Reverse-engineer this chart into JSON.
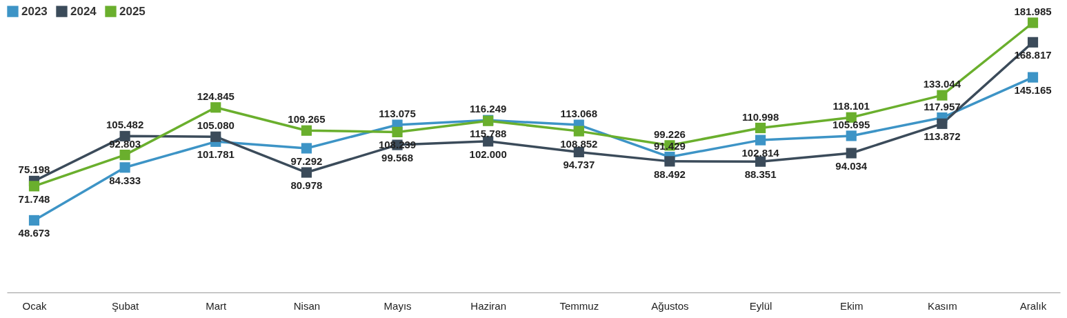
{
  "chart_data": {
    "type": "line",
    "categories": [
      "Ocak",
      "Şubat",
      "Mart",
      "Nisan",
      "Mayıs",
      "Haziran",
      "Temmuz",
      "Ağustos",
      "Eylül",
      "Ekim",
      "Kasım",
      "Aralık"
    ],
    "series": [
      {
        "name": "2023",
        "color": "#3d94c6",
        "values": [
          48673,
          84333,
          101781,
          97292,
          113075,
          116249,
          113068,
          91429,
          102814,
          105695,
          117957,
          145165
        ],
        "value_labels": [
          "48.673",
          "84.333",
          "101.781",
          "97.292",
          "113.075",
          "116.249",
          "113.068",
          "91.429",
          "102.814",
          "105.695",
          "117.957",
          "145.165"
        ]
      },
      {
        "name": "2024",
        "color": "#3b4b5a",
        "values": [
          75198,
          105482,
          105080,
          80978,
          99568,
          102000,
          94737,
          88492,
          88351,
          94034,
          113872,
          168817
        ],
        "value_labels": [
          "75.198",
          "105.482",
          "105.080",
          "80.978",
          "99.568",
          "102.000",
          "94.737",
          "88.492",
          "88.351",
          "94.034",
          "113.872",
          "168.817"
        ]
      },
      {
        "name": "2025",
        "color": "#6aaf2d",
        "values": [
          71748,
          92803,
          124845,
          109265,
          108239,
          115788,
          108852,
          99226,
          110998,
          118101,
          133044,
          181985
        ],
        "value_labels": [
          "71.748",
          "92.803",
          "124.845",
          "109.265",
          "108.239",
          "115.788",
          "108.852",
          "99.226",
          "110.998",
          "118.101",
          "133.044",
          "181.985"
        ]
      }
    ],
    "legend": "top left",
    "marker": "square",
    "grid": false
  }
}
